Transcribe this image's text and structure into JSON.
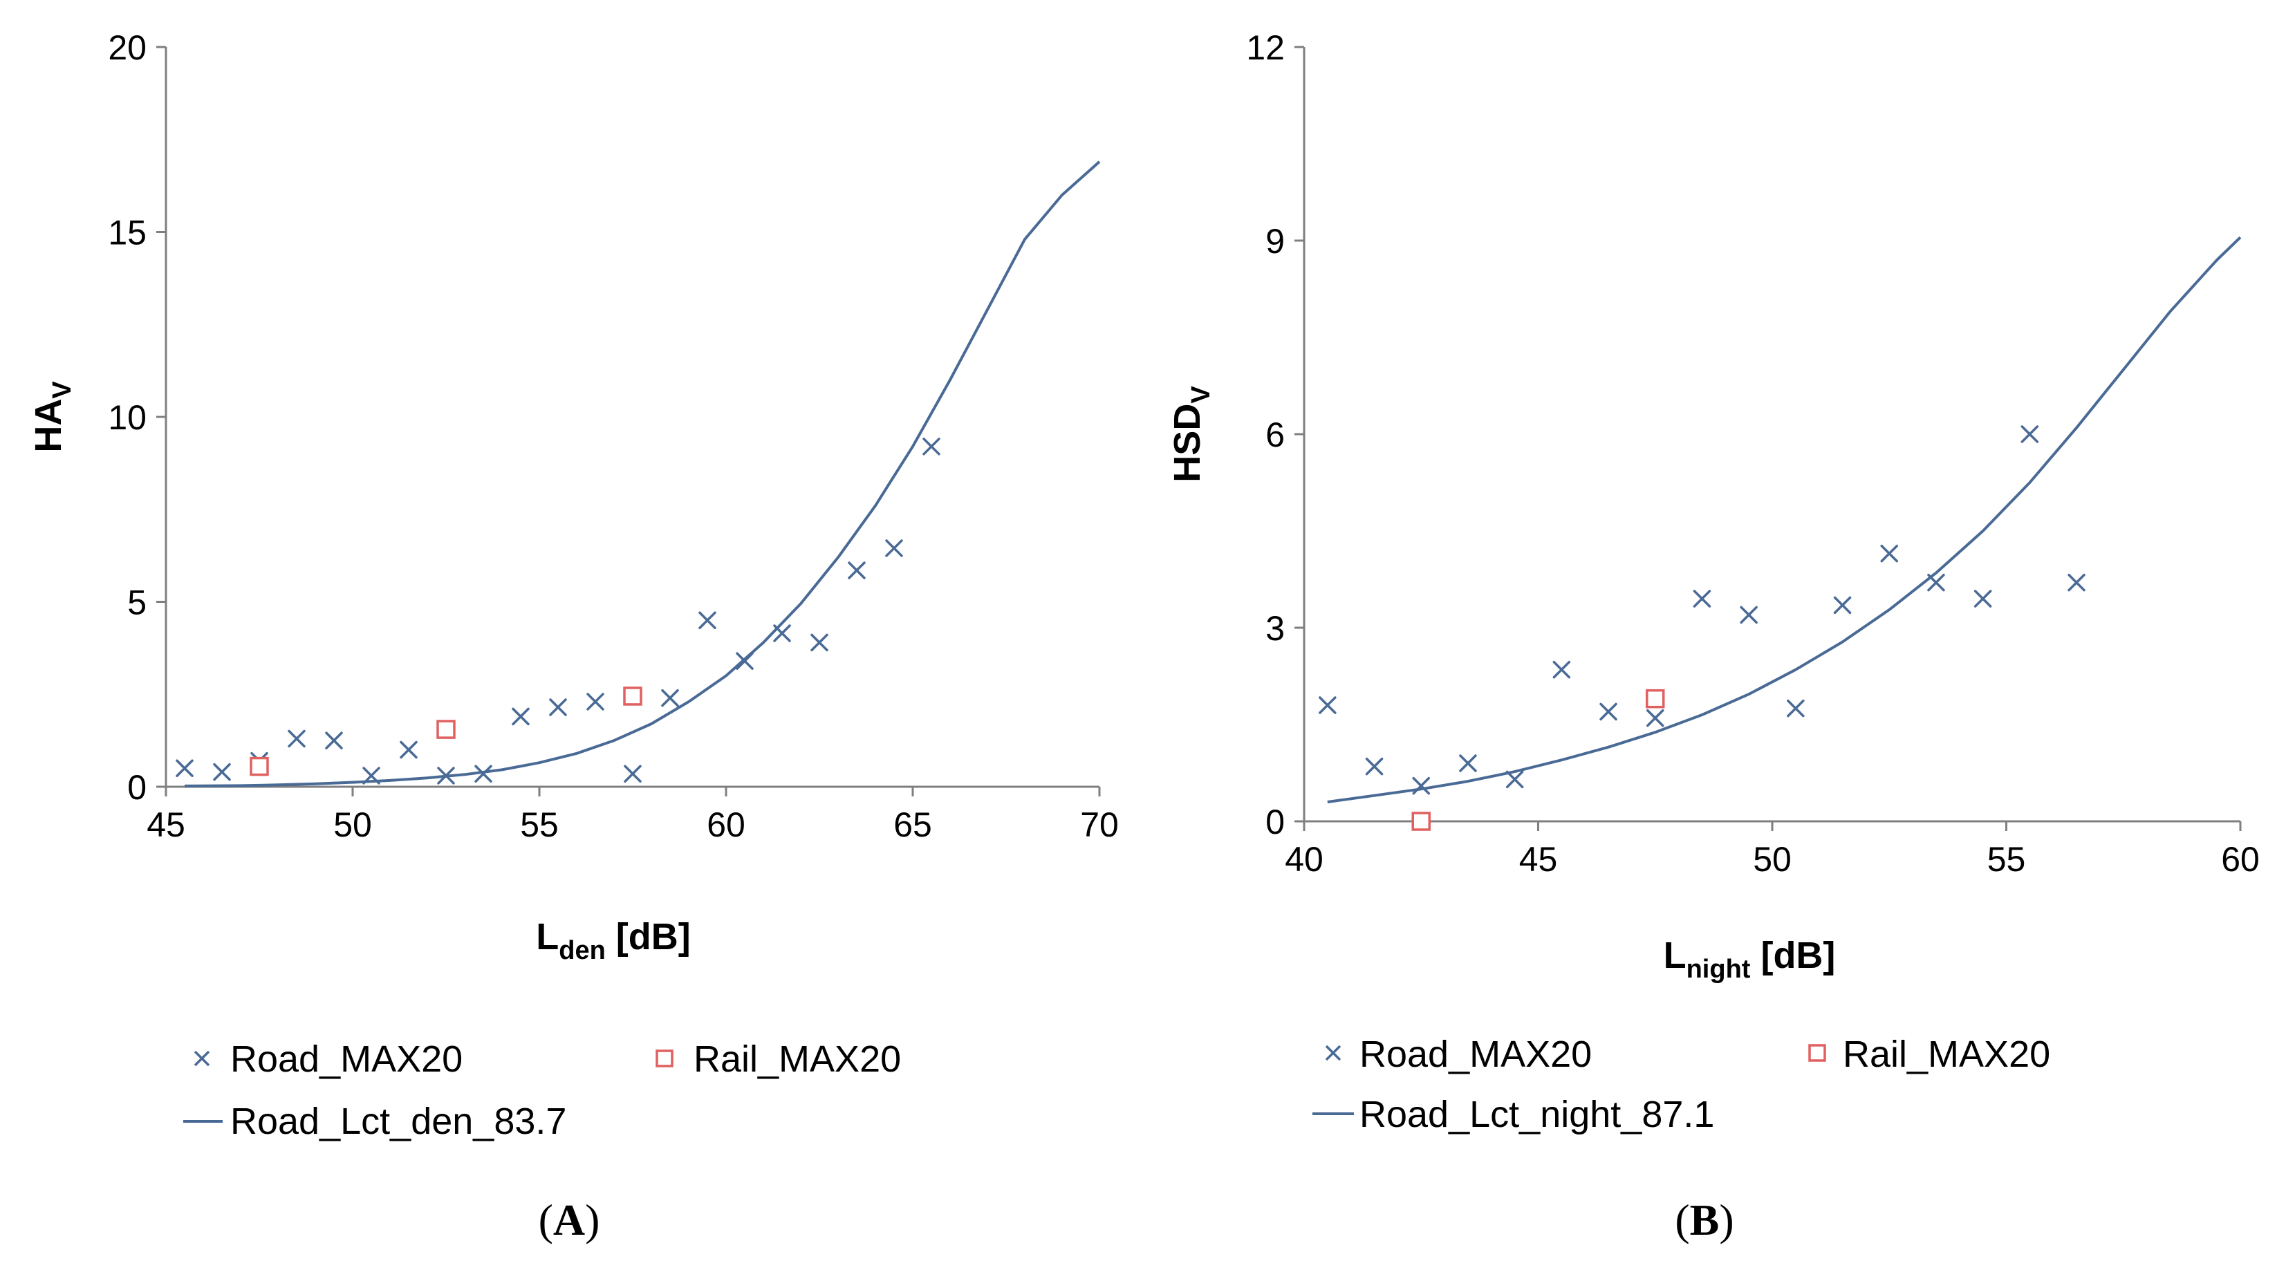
{
  "figure": {
    "colors": {
      "road": "#4a6a96",
      "rail": "#e06060",
      "axis": "#7f7f7f"
    },
    "panels": [
      {
        "label_open": "(",
        "label_letter": "A",
        "label_close": ")",
        "legend": {
          "road": "Road_MAX20",
          "rail": "Rail_MAX20",
          "curve": "Road_Lct_den_83.7"
        }
      },
      {
        "label_open": "(",
        "label_letter": "B",
        "label_close": ")",
        "legend": {
          "road": "Road_MAX20",
          "rail": "Rail_MAX20",
          "curve": "Road_Lct_night_87.1"
        }
      }
    ]
  },
  "chart_data": [
    {
      "type": "scatter",
      "title": "",
      "xlabel": "L_den [dB]",
      "xlabel_main": "L",
      "xlabel_sub": "den",
      "xlabel_unit": " [dB]",
      "ylabel": "HA_V",
      "ylabel_main": "HA",
      "ylabel_sub": "V",
      "xlim": [
        45,
        70
      ],
      "ylim": [
        0,
        20
      ],
      "xticks": [
        45,
        50,
        55,
        60,
        65,
        70
      ],
      "yticks": [
        0,
        5,
        10,
        15,
        20
      ],
      "series": [
        {
          "name": "Road_MAX20",
          "marker": "x",
          "x": [
            45.5,
            46.5,
            47.5,
            48.5,
            49.5,
            50.5,
            51.5,
            52.5,
            53.5,
            54.5,
            55.5,
            56.5,
            57.5,
            58.5,
            59.5,
            60.5,
            61.5,
            62.5,
            63.5,
            64.5,
            65.5
          ],
          "y": [
            0.5,
            0.4,
            0.7,
            1.3,
            1.25,
            0.3,
            1.0,
            0.3,
            0.35,
            1.9,
            2.15,
            2.3,
            0.35,
            2.4,
            4.5,
            3.4,
            4.15,
            3.9,
            5.85,
            6.45,
            9.2
          ]
        },
        {
          "name": "Rail_MAX20",
          "marker": "square",
          "x": [
            47.5,
            52.5,
            57.5
          ],
          "y": [
            0.55,
            1.55,
            2.45
          ]
        },
        {
          "name": "Road_Lct_den_83.7",
          "type": "line",
          "x": [
            45.5,
            47,
            48,
            49,
            50,
            51,
            52,
            53,
            54,
            55,
            56,
            57,
            58,
            59,
            60,
            61,
            62,
            63,
            64,
            65,
            66,
            67,
            68,
            69,
            70
          ],
          "y": [
            0.02,
            0.03,
            0.05,
            0.08,
            0.12,
            0.17,
            0.24,
            0.33,
            0.46,
            0.65,
            0.9,
            1.25,
            1.7,
            2.3,
            3.0,
            3.9,
            4.95,
            6.2,
            7.6,
            9.2,
            11.0,
            12.9,
            14.8,
            16.0,
            16.9
          ]
        }
      ]
    },
    {
      "type": "scatter",
      "title": "",
      "xlabel": "L_night [dB]",
      "xlabel_main": "L",
      "xlabel_sub": "night",
      "xlabel_unit": " [dB]",
      "ylabel": "HSD_V",
      "ylabel_main": "HSD",
      "ylabel_sub": "V",
      "xlim": [
        40,
        60
      ],
      "ylim": [
        0,
        12
      ],
      "xticks": [
        40,
        45,
        50,
        55,
        60
      ],
      "yticks": [
        0,
        3,
        6,
        9,
        12
      ],
      "series": [
        {
          "name": "Road_MAX20",
          "marker": "x",
          "x": [
            40.5,
            41.5,
            42.5,
            43.5,
            44.5,
            45.5,
            46.5,
            47.5,
            48.5,
            49.5,
            50.5,
            51.5,
            52.5,
            53.5,
            54.5,
            55.5,
            56.5
          ],
          "y": [
            1.8,
            0.85,
            0.55,
            0.9,
            0.65,
            2.35,
            1.7,
            1.6,
            3.45,
            3.2,
            1.75,
            3.35,
            4.15,
            3.7,
            3.45,
            6.0,
            3.7
          ]
        },
        {
          "name": "Rail_MAX20",
          "marker": "square",
          "x": [
            42.5,
            47.5
          ],
          "y": [
            0.0,
            1.9
          ]
        },
        {
          "name": "Road_Lct_night_87.1",
          "type": "line",
          "x": [
            40.5,
            41.5,
            42.5,
            43.5,
            44.5,
            45.5,
            46.5,
            47.5,
            48.5,
            49.5,
            50.5,
            51.5,
            52.5,
            53.5,
            54.5,
            55.5,
            56.5,
            57.5,
            58.5,
            59.5,
            60
          ],
          "y": [
            0.3,
            0.4,
            0.5,
            0.62,
            0.77,
            0.95,
            1.15,
            1.38,
            1.65,
            1.97,
            2.35,
            2.78,
            3.28,
            3.85,
            4.5,
            5.25,
            6.1,
            7.0,
            7.9,
            8.7,
            9.05
          ]
        }
      ]
    }
  ]
}
